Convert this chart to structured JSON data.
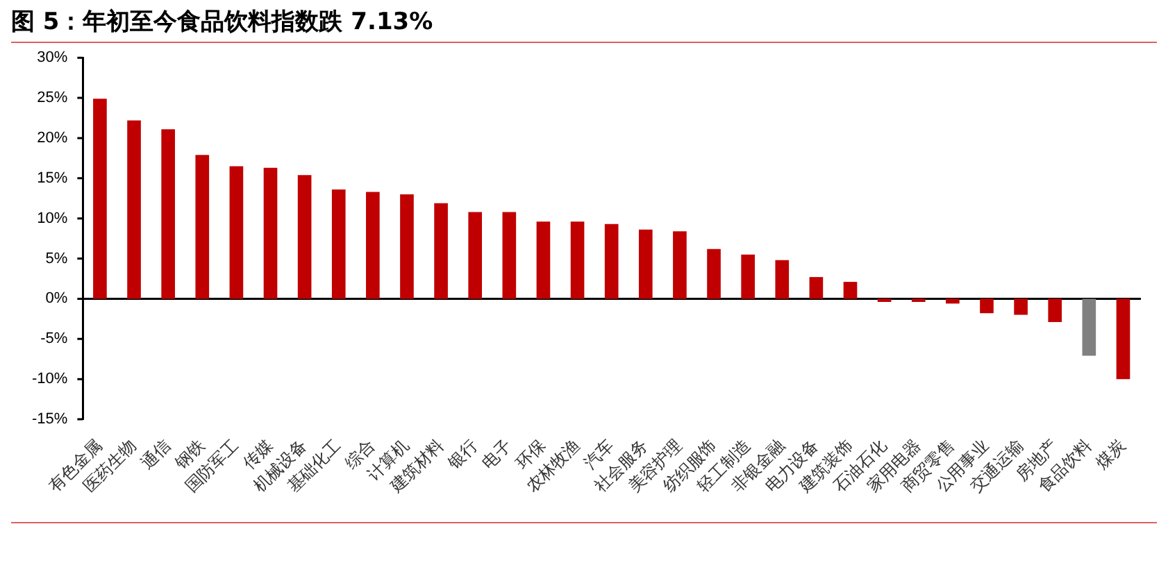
{
  "chart_data": {
    "type": "bar",
    "title": "图 5：年初至今食品饮料指数跌 7.13%",
    "categories": [
      "有色金属",
      "医药生物",
      "通信",
      "钢铁",
      "国防军工",
      "传媒",
      "机械设备",
      "基础化工",
      "综合",
      "计算机",
      "建筑材料",
      "银行",
      "电子",
      "环保",
      "农林牧渔",
      "汽车",
      "社会服务",
      "美容护理",
      "纺织服饰",
      "轻工制造",
      "非银金融",
      "电力设备",
      "建筑装饰",
      "石油石化",
      "家用电器",
      "商贸零售",
      "公用事业",
      "交通运输",
      "房地产",
      "食品饮料",
      "煤炭"
    ],
    "values": [
      24.9,
      22.2,
      21.1,
      17.9,
      16.5,
      16.3,
      15.4,
      13.6,
      13.3,
      13.0,
      11.9,
      10.8,
      10.8,
      9.6,
      9.6,
      9.3,
      8.6,
      8.4,
      6.2,
      5.5,
      4.8,
      2.7,
      2.1,
      -0.4,
      -0.4,
      -0.6,
      -1.8,
      -2.0,
      -2.9,
      -7.1,
      -10.0
    ],
    "colors": [
      "#c00000",
      "#c00000",
      "#c00000",
      "#c00000",
      "#c00000",
      "#c00000",
      "#c00000",
      "#c00000",
      "#c00000",
      "#c00000",
      "#c00000",
      "#c00000",
      "#c00000",
      "#c00000",
      "#c00000",
      "#c00000",
      "#c00000",
      "#c00000",
      "#c00000",
      "#c00000",
      "#c00000",
      "#c00000",
      "#c00000",
      "#c00000",
      "#c00000",
      "#c00000",
      "#c00000",
      "#c00000",
      "#c00000",
      "#808080",
      "#c00000"
    ],
    "ylim": [
      -15,
      30
    ],
    "yticks": [
      {
        "value": -15,
        "label": "-15%"
      },
      {
        "value": -10,
        "label": "-10%"
      },
      {
        "value": -5,
        "label": "-5%"
      },
      {
        "value": 0,
        "label": "0%"
      },
      {
        "value": 5,
        "label": "5%"
      },
      {
        "value": 10,
        "label": "10%"
      },
      {
        "value": 15,
        "label": "15%"
      },
      {
        "value": 20,
        "label": "20%"
      },
      {
        "value": 25,
        "label": "25%"
      },
      {
        "value": 30,
        "label": "30%"
      }
    ],
    "legend": false
  }
}
